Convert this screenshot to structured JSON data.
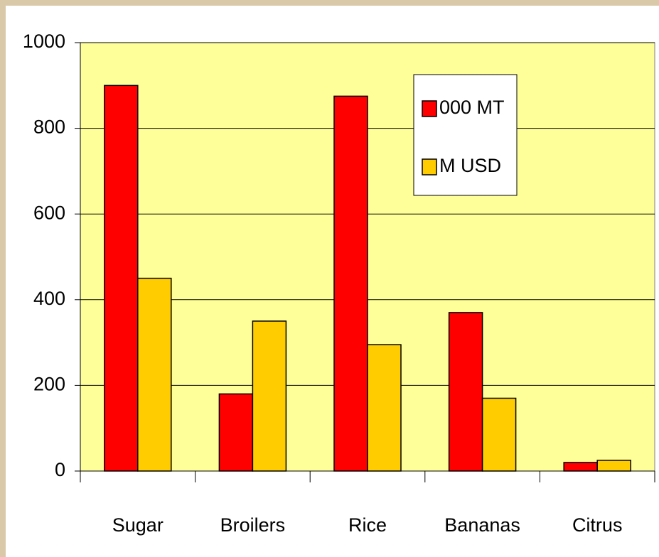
{
  "chart_data": {
    "type": "bar",
    "categories": [
      "Sugar",
      "Broilers",
      "Rice",
      "Bananas",
      "Citrus"
    ],
    "series": [
      {
        "name": "000 MT",
        "color": "#ff0000",
        "values": [
          900,
          180,
          875,
          370,
          20
        ]
      },
      {
        "name": "M USD",
        "color": "#ffcc00",
        "values": [
          450,
          350,
          295,
          170,
          25
        ]
      }
    ],
    "ylim": [
      0,
      1000
    ],
    "yticks": [
      0,
      200,
      400,
      600,
      800,
      1000
    ],
    "grid": true,
    "legend": "top-right"
  }
}
